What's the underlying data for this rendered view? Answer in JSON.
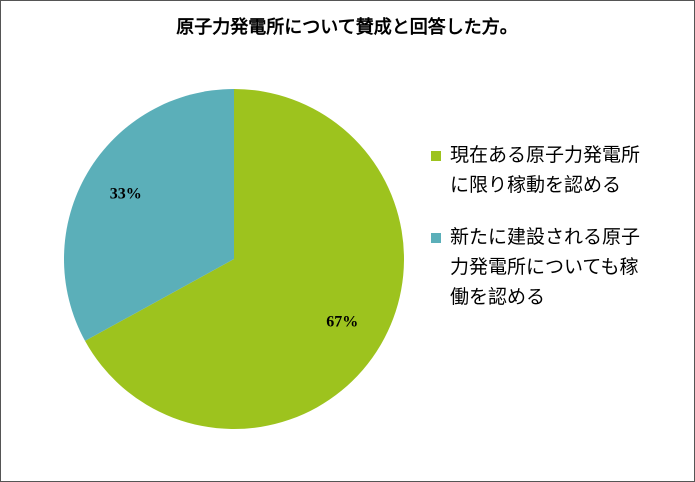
{
  "chart_data": {
    "type": "pie",
    "title": "原子力発電所について賛成と回答した方。",
    "categories": [
      "現在ある原子力発電所に限り稼動を認める",
      "新たに建設される原子力発電所についても稼働を認める"
    ],
    "values": [
      67,
      33
    ],
    "value_labels": [
      "67%",
      "33%"
    ],
    "colors": [
      "#9dc31e",
      "#5bafb9"
    ],
    "legend": "right"
  }
}
